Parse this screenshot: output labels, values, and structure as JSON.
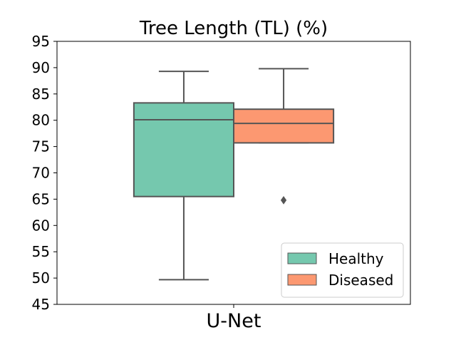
{
  "chart_data": {
    "type": "box",
    "title": "Tree Length (TL) (%)",
    "xlabel": "",
    "ylabel": "",
    "categories": [
      "U-Net"
    ],
    "ylim": [
      45,
      95
    ],
    "yticks": [
      45,
      50,
      55,
      60,
      65,
      70,
      75,
      80,
      85,
      90,
      95
    ],
    "grid": false,
    "legend_position": "lower-right",
    "series": [
      {
        "name": "Healthy",
        "color": "#66c2a5",
        "stats": {
          "whisker_low": 49.7,
          "q1": 65.5,
          "median": 80.1,
          "q3": 83.3,
          "whisker_high": 89.3
        },
        "outliers": []
      },
      {
        "name": "Diseased",
        "color": "#fc8d62",
        "stats": {
          "whisker_low": 75.7,
          "q1": 75.7,
          "median": 79.4,
          "q3": 82.1,
          "whisker_high": 89.8
        },
        "outliers": [
          64.8
        ]
      }
    ]
  }
}
